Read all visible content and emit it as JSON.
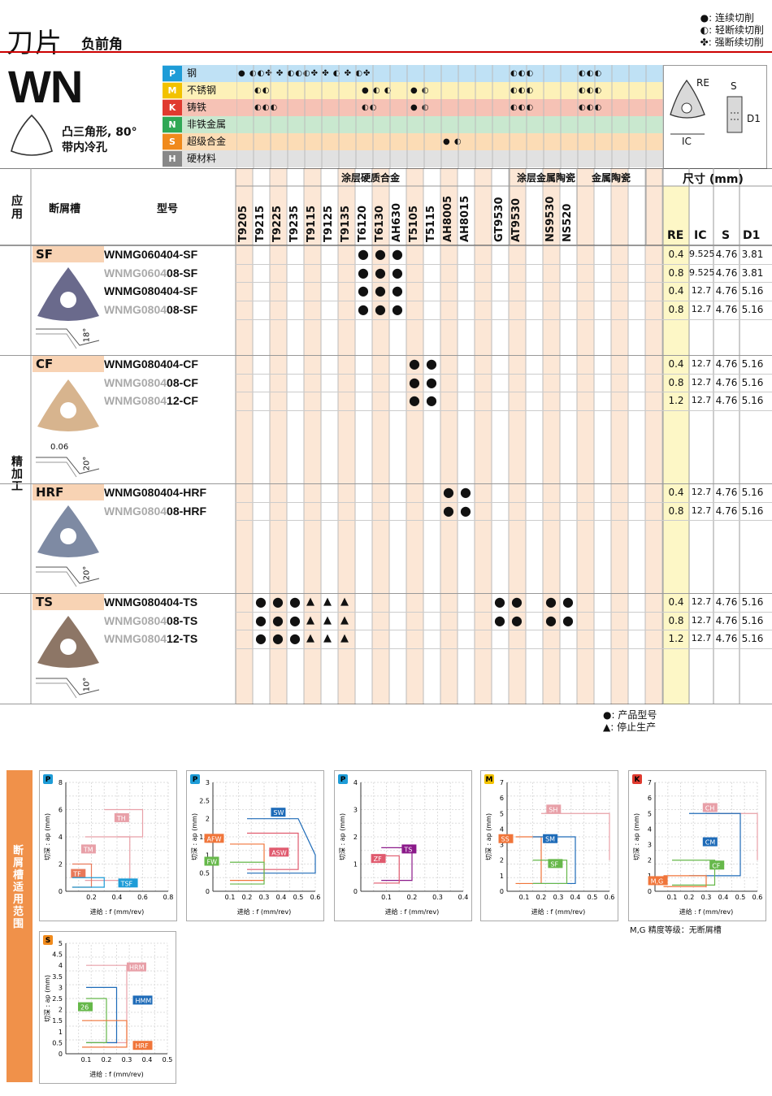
{
  "page_title": "刀片",
  "page_subtitle": "负前角",
  "legend_top": [
    "●: 连续切削",
    "◐: 轻断续切削",
    "✤: 强断续切削"
  ],
  "insert_code": "WN",
  "insert_desc": [
    "凸三角形, 80°",
    "带内冷孔"
  ],
  "diagram_labels": {
    "re": "RE",
    "s": "S",
    "d1": "D1",
    "ic": "IC"
  },
  "materials": [
    {
      "code": "P",
      "name": "钢",
      "color": "#1e9cd7",
      "bg": "#bfe1f5",
      "dots": [
        "● ◐◐✤ ✤ ◐◐◐✤ ✤ ◐ ✤ ◐✤",
        "◐◐◐",
        "◐◐◐"
      ]
    },
    {
      "code": "M",
      "name": "不锈钢",
      "color": "#f2c200",
      "bg": "#fdf1b8",
      "dots": [
        "◐◐",
        "● ◐ ◐",
        "● ◐",
        "◐◐◐",
        "◐◐◐"
      ]
    },
    {
      "code": "K",
      "name": "铸铁",
      "color": "#e03a2f",
      "bg": "#f6c2b5",
      "dots": [
        "◐◐◐",
        "◐◐",
        "● ◐",
        "◐◐◐",
        "◐◐◐"
      ]
    },
    {
      "code": "N",
      "name": "非铁金属",
      "color": "#2fa855",
      "bg": "#c9e8cf",
      "dots": []
    },
    {
      "code": "S",
      "name": "超级合金",
      "color": "#f08a1c",
      "bg": "#fcdcb5",
      "dots": [
        "● ◐"
      ]
    },
    {
      "code": "H",
      "name": "硬材料",
      "color": "#888888",
      "bg": "#e1e1e1",
      "dots": []
    }
  ],
  "table_headers": {
    "application": "应用",
    "chipbreaker": "断屑槽",
    "model": "型号",
    "group_coated_carbide": "涂层硬质合金",
    "group_coated_cermet": "涂层金属陶瓷",
    "group_cermet": "金属陶瓷",
    "dimensions": "尺寸 (mm)",
    "dim_cols": [
      "RE",
      "IC",
      "S",
      "D1"
    ],
    "application_value": "精加工"
  },
  "grades": [
    "T9205",
    "T9215",
    "T9225",
    "T9235",
    "T9115",
    "T9125",
    "T9135",
    "T6120",
    "T6130",
    "AH630",
    "T5105",
    "T5115",
    "AH8005",
    "AH8015",
    "",
    "GT9530",
    "AT9530",
    "",
    "NS9530",
    "NS520",
    ""
  ],
  "groups": [
    {
      "chipbreaker": "SF",
      "rows": [
        {
          "model_prefix": "",
          "model_main": "WNMG060404-SF",
          "re": "0.4",
          "ic": "9.525",
          "s": "4.76",
          "d1": "3.81"
        },
        {
          "model_prefix": "WNMG0604",
          "model_main": "08-SF",
          "re": "0.8",
          "ic": "9.525",
          "s": "4.76",
          "d1": "3.81"
        },
        {
          "model_prefix": "",
          "model_main": "WNMG080404-SF",
          "re": "0.4",
          "ic": "12.7",
          "s": "4.76",
          "d1": "5.16"
        },
        {
          "model_prefix": "WNMG0804",
          "model_main": "08-SF",
          "re": "0.8",
          "ic": "12.7",
          "s": "4.76",
          "d1": "5.16"
        }
      ],
      "angle": "18°"
    },
    {
      "chipbreaker": "CF",
      "rows": [
        {
          "model_prefix": "",
          "model_main": "WNMG080404-CF",
          "re": "0.4",
          "ic": "12.7",
          "s": "4.76",
          "d1": "5.16"
        },
        {
          "model_prefix": "WNMG0804",
          "model_main": "08-CF",
          "re": "0.8",
          "ic": "12.7",
          "s": "4.76",
          "d1": "5.16"
        },
        {
          "model_prefix": "WNMG0804",
          "model_main": "12-CF",
          "re": "1.2",
          "ic": "12.7",
          "s": "4.76",
          "d1": "5.16"
        }
      ],
      "angle": "20°",
      "land": "0.06"
    },
    {
      "chipbreaker": "HRF",
      "rows": [
        {
          "model_prefix": "",
          "model_main": "WNMG080404-HRF",
          "re": "0.4",
          "ic": "12.7",
          "s": "4.76",
          "d1": "5.16"
        },
        {
          "model_prefix": "WNMG0804",
          "model_main": "08-HRF",
          "re": "0.8",
          "ic": "12.7",
          "s": "4.76",
          "d1": "5.16"
        }
      ],
      "angle": "20°"
    },
    {
      "chipbreaker": "TS",
      "rows": [
        {
          "model_prefix": "",
          "model_main": "WNMG080404-TS",
          "re": "0.4",
          "ic": "12.7",
          "s": "4.76",
          "d1": "5.16"
        },
        {
          "model_prefix": "WNMG0804",
          "model_main": "08-TS",
          "re": "0.8",
          "ic": "12.7",
          "s": "4.76",
          "d1": "5.16"
        },
        {
          "model_prefix": "WNMG0804",
          "model_main": "12-TS",
          "re": "1.2",
          "ic": "12.7",
          "s": "4.76",
          "d1": "5.16"
        }
      ],
      "angle": "10°"
    }
  ],
  "legend_bottom": [
    "●: 产品型号",
    "▲: 停止生产"
  ],
  "range_section_label": "断屑槽适用范围",
  "chart_axis": {
    "x": "进给 : f (mm/rev)",
    "y": "切深 : ap (mm)"
  },
  "chart_note": "M,G 精度等级：无断屑槽",
  "chart_data": [
    {
      "type": "area",
      "material": "P",
      "xlim": [
        0,
        0.8
      ],
      "ylim": [
        0,
        8
      ],
      "xticks": [
        "0.2",
        "0.4",
        "0.6",
        "0.8"
      ],
      "yticks": [
        "2",
        "4",
        "6",
        "8"
      ],
      "series": [
        {
          "name": "TH"
        },
        {
          "name": "TM"
        },
        {
          "name": "TF"
        },
        {
          "name": "TSF"
        }
      ]
    },
    {
      "type": "area",
      "material": "P",
      "xlim": [
        0,
        0.6
      ],
      "ylim": [
        0,
        3
      ],
      "xticks": [
        "0.1",
        "0.2",
        "0.3",
        "0.4",
        "0.5",
        "0.6"
      ],
      "yticks": [
        "0.5",
        "1",
        "1.5",
        "2",
        "2.5",
        "3"
      ],
      "series": [
        {
          "name": "SW"
        },
        {
          "name": "AFW"
        },
        {
          "name": "ASW"
        },
        {
          "name": "FW"
        }
      ]
    },
    {
      "type": "area",
      "material": "P",
      "xlim": [
        0,
        0.4
      ],
      "ylim": [
        0,
        4
      ],
      "xticks": [
        "0.1",
        "0.2",
        "0.3",
        "0.4"
      ],
      "yticks": [
        "1",
        "2",
        "3",
        "4"
      ],
      "series": [
        {
          "name": "TS"
        },
        {
          "name": "ZF"
        }
      ]
    },
    {
      "type": "area",
      "material": "M",
      "xlim": [
        0,
        0.6
      ],
      "ylim": [
        0,
        7
      ],
      "xticks": [
        "0.1",
        "0.2",
        "0.3",
        "0.4",
        "0.5",
        "0.6"
      ],
      "yticks": [
        "1",
        "2",
        "3",
        "4",
        "5",
        "6",
        "7"
      ],
      "series": [
        {
          "name": "SH"
        },
        {
          "name": "SS"
        },
        {
          "name": "SM"
        },
        {
          "name": "SF"
        }
      ]
    },
    {
      "type": "area",
      "material": "K",
      "xlim": [
        0,
        0.6
      ],
      "ylim": [
        0,
        7
      ],
      "xticks": [
        "0.1",
        "0.2",
        "0.3",
        "0.4",
        "0.5",
        "0.6"
      ],
      "yticks": [
        "1",
        "2",
        "3",
        "4",
        "5",
        "6",
        "7"
      ],
      "series": [
        {
          "name": "CH"
        },
        {
          "name": "CM"
        },
        {
          "name": "CF"
        },
        {
          "name": "M,G"
        }
      ]
    },
    {
      "type": "area",
      "material": "S",
      "xlim": [
        0,
        0.5
      ],
      "ylim": [
        0,
        5
      ],
      "xticks": [
        "0.1",
        "0.2",
        "0.3",
        "0.4",
        "0.5"
      ],
      "yticks": [
        "0.5",
        "1",
        "1.5",
        "2",
        "2.5",
        "3",
        "3.5",
        "4",
        "4.5",
        "5"
      ],
      "series": [
        {
          "name": "HRM"
        },
        {
          "name": "HMM"
        },
        {
          "name": "26"
        },
        {
          "name": "HRF"
        }
      ]
    }
  ]
}
